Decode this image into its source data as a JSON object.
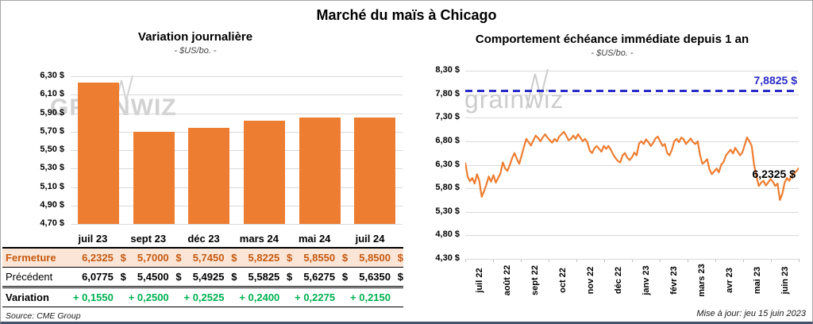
{
  "page": {
    "title": "Marché du maïs à Chicago",
    "source": "Source: CME Group",
    "updated": "Mise à jour: jeu 15 juin 2023"
  },
  "watermark": {
    "left": "GRAINWIZ",
    "right": "grainwiz"
  },
  "colors": {
    "orange": "#ED7D31",
    "blue": "#2A2AC8",
    "green": "#00B050",
    "fermeture_bg": "#FBE5D6",
    "fermeture_text": "#C55A11",
    "grid": "#D9D9D9"
  },
  "table": {
    "columns": [
      "juil 23",
      "sept 23",
      "déc 23",
      "mars 24",
      "mai 24",
      "juil 24"
    ],
    "rows": [
      {
        "label": "Fermeture",
        "values": [
          "6,2325",
          "5,7000",
          "5,7450",
          "5,8225",
          "5,8550",
          "5,8500"
        ],
        "suffix": "$",
        "style": "fermeture"
      },
      {
        "label": "Précédent",
        "values": [
          "6,0775",
          "5,4500",
          "5,4925",
          "5,5825",
          "5,6275",
          "5,6350"
        ],
        "suffix": "$",
        "style": "precedent"
      },
      {
        "label": "Variation",
        "values": [
          "+ 0,1550",
          "+ 0,2500",
          "+ 0,2525",
          "+ 0,2400",
          "+ 0,2275",
          "+ 0,2150"
        ],
        "suffix": "",
        "style": "variation"
      }
    ]
  },
  "chart_data": [
    {
      "type": "bar",
      "title": "Variation journalière",
      "subtitle": "- $US/bo. -",
      "categories": [
        "juil 23",
        "sept 23",
        "déc 23",
        "mars 24",
        "mai 24",
        "juil 24"
      ],
      "values": [
        6.2325,
        5.7,
        5.745,
        5.8225,
        5.855,
        5.85
      ],
      "ylim": [
        4.7,
        6.3
      ],
      "ytick_labels": [
        "6,30 $",
        "6,10 $",
        "5,90 $",
        "5,70 $",
        "5,50 $",
        "5,30 $",
        "5,10 $",
        "4,90 $",
        "4,70 $"
      ],
      "grid": true,
      "bar_color": "#ED7D31"
    },
    {
      "type": "line",
      "title": "Comportement échéance immédiate depuis 1 an",
      "subtitle": "- $US/bo. -",
      "x_labels": [
        "juil 22",
        "août 22",
        "sept 22",
        "oct 22",
        "nov 22",
        "déc 22",
        "janv 23",
        "févr 23",
        "mars 23",
        "avr 23",
        "mai 23",
        "juin 23"
      ],
      "ylim": [
        4.3,
        8.3
      ],
      "ytick_labels": [
        "8,30 $",
        "7,80 $",
        "7,30 $",
        "6,80 $",
        "6,30 $",
        "5,80 $",
        "5,30 $",
        "4,80 $",
        "4,30 $"
      ],
      "grid": true,
      "line_color": "#ED7D31",
      "threshold": {
        "value": 7.8825,
        "label": "7,8825 $",
        "color": "#2A2AC8",
        "style": "dashed"
      },
      "last_point": {
        "value": 6.2325,
        "label": "6,2325 $"
      },
      "values": [
        6.35,
        6.05,
        5.95,
        6.02,
        5.9,
        6.1,
        5.96,
        5.62,
        5.74,
        5.88,
        6.05,
        5.94,
        6.08,
        5.92,
        6.02,
        6.12,
        6.35,
        6.22,
        6.17,
        6.3,
        6.45,
        6.55,
        6.42,
        6.32,
        6.5,
        6.68,
        6.85,
        6.78,
        6.71,
        6.82,
        6.92,
        6.87,
        6.8,
        6.88,
        6.95,
        6.88,
        6.82,
        6.77,
        6.85,
        6.8,
        6.9,
        6.95,
        7.0,
        6.92,
        6.82,
        6.85,
        6.92,
        6.85,
        6.95,
        6.88,
        6.8,
        6.85,
        6.78,
        6.6,
        6.55,
        6.65,
        6.7,
        6.64,
        6.58,
        6.7,
        6.64,
        6.7,
        6.62,
        6.52,
        6.44,
        6.38,
        6.35,
        6.5,
        6.55,
        6.45,
        6.4,
        6.46,
        6.56,
        6.5,
        6.75,
        6.8,
        6.74,
        6.84,
        6.78,
        6.7,
        6.76,
        6.86,
        6.9,
        6.8,
        6.7,
        6.74,
        6.55,
        6.5,
        6.62,
        6.8,
        6.85,
        6.78,
        6.88,
        6.84,
        6.74,
        6.8,
        6.86,
        6.78,
        6.74,
        6.8,
        6.5,
        6.32,
        6.36,
        6.42,
        6.2,
        6.1,
        6.16,
        6.22,
        6.14,
        6.3,
        6.36,
        6.5,
        6.56,
        6.62,
        6.54,
        6.66,
        6.58,
        6.5,
        6.56,
        6.72,
        6.88,
        6.8,
        6.7,
        6.3,
        6.05,
        5.85,
        5.92,
        5.96,
        5.86,
        5.92,
        6.0,
        5.94,
        5.85,
        5.9,
        5.55,
        5.68,
        5.92,
        6.02,
        5.96,
        6.06,
        6.12,
        6.16,
        6.2325
      ]
    }
  ]
}
